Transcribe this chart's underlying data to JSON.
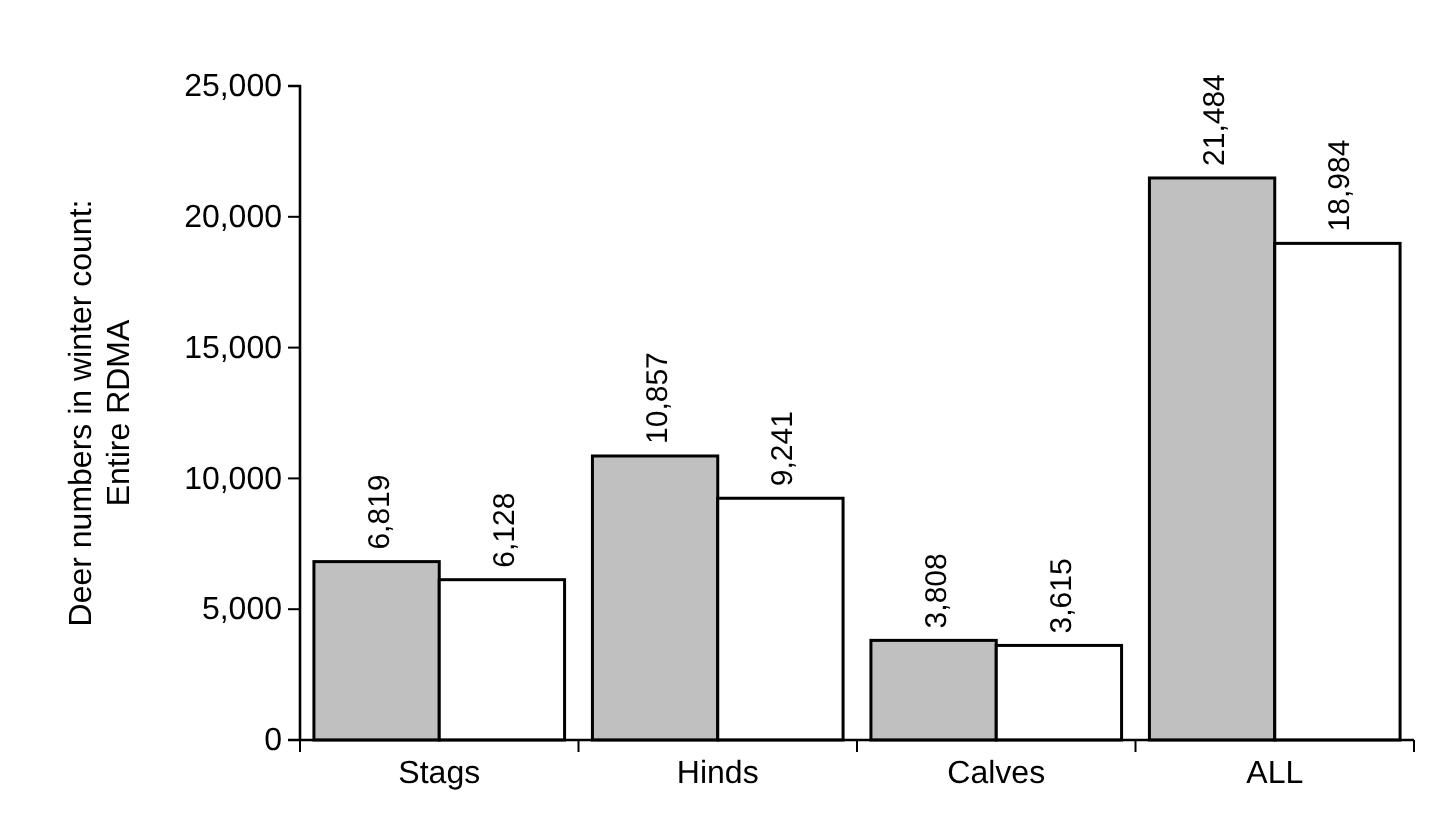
{
  "chart_data": {
    "type": "bar",
    "ylabel": "Deer numbers in winter count:\nEntire RDMA",
    "categories": [
      "Stags",
      "Hinds",
      "Calves",
      "ALL"
    ],
    "series": [
      {
        "color": "#c0c0c0",
        "values": [
          6819,
          10857,
          3808,
          21484
        ],
        "value_labels": [
          "6,819",
          "10,857",
          "3,808",
          "21,484"
        ]
      },
      {
        "color": "#ffffff",
        "values": [
          6128,
          9241,
          3615,
          18984
        ],
        "value_labels": [
          "6,128",
          "9,241",
          "3,615",
          "18,984"
        ]
      }
    ],
    "ylim": [
      0,
      25000
    ],
    "yticks": [
      0,
      {
        "value": 5000,
        "label": "5,000"
      },
      {
        "value": 10000,
        "label": "10,000"
      },
      {
        "value": 15000,
        "label": "15,000"
      },
      {
        "value": 20000,
        "label": "20,000"
      },
      {
        "value": 25000,
        "label": "25,000"
      }
    ],
    "grid": false
  }
}
